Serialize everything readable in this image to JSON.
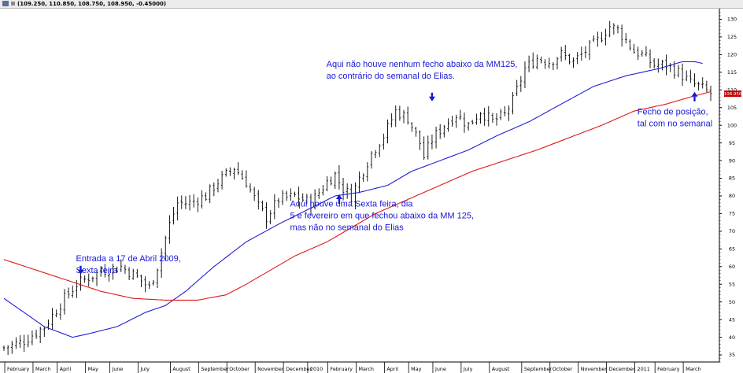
{
  "window": {
    "quote_readout": "(109.250, 110.850, 108.750, 108.950, -0.45000)"
  },
  "price_marker": {
    "value": "108.950",
    "color": "#c00000"
  },
  "colors": {
    "price_bars": "#000000",
    "ma_short": "#2020d8",
    "ma_long": "#e01818",
    "annotation_text": "#1818d8",
    "arrow": "#1818d8"
  },
  "annotations": [
    {
      "lines": [
        "Entrada a 17 de Abril 2009,",
        "Sexta feira"
      ],
      "x_index": 19,
      "y_value": 61.5,
      "arrow": "down",
      "arrow_x_index": 19,
      "arrow_y_value": 58
    },
    {
      "lines": [
        "Aqui houve uma Sexta feira, dia",
        "5 e fevereiro em que fechou abaixo da MM 125,",
        "mas não no semanal do Elias"
      ],
      "x_index": 72,
      "y_value": 77,
      "arrow": "up",
      "arrow_x_index": 83,
      "arrow_y_value": 78
    },
    {
      "lines": [
        "Aqui não houve nenhum fecho abaixo da MM125,",
        "ao contrário do semanal do Elias."
      ],
      "x_index": 81,
      "y_value": 116.5,
      "arrow": "down",
      "arrow_x_index": 106,
      "arrow_y_value": 107
    },
    {
      "lines": [
        "Fecho de posição,",
        "tal com no semanal"
      ],
      "x_index": 158,
      "y_value": 103,
      "arrow": "up",
      "arrow_x_index": 171,
      "arrow_y_value": 107
    }
  ],
  "chart_data": {
    "type": "line",
    "title": "",
    "xlabel": "",
    "ylabel": "",
    "ylim": [
      33,
      133
    ],
    "y_ticks": [
      35,
      40,
      45,
      50,
      55,
      60,
      65,
      70,
      75,
      80,
      85,
      90,
      95,
      100,
      105,
      110,
      115,
      120,
      125,
      130
    ],
    "grid": false,
    "legend": "none",
    "x_months": [
      {
        "label": "February",
        "index": 3
      },
      {
        "label": "March",
        "index": 10
      },
      {
        "label": "April",
        "index": 16
      },
      {
        "label": "May",
        "index": 23
      },
      {
        "label": "June",
        "index": 29
      },
      {
        "label": "July",
        "index": 36
      },
      {
        "label": "August",
        "index": 44
      },
      {
        "label": "September",
        "index": 51
      },
      {
        "label": "October",
        "index": 58
      },
      {
        "label": "November",
        "index": 65
      },
      {
        "label": "December",
        "index": 72
      },
      {
        "label": "2010",
        "index": 78
      },
      {
        "label": "February",
        "index": 83
      },
      {
        "label": "March",
        "index": 90
      },
      {
        "label": "April",
        "index": 97
      },
      {
        "label": "May",
        "index": 103
      },
      {
        "label": "June",
        "index": 109
      },
      {
        "label": "July",
        "index": 116
      },
      {
        "label": "August",
        "index": 123
      },
      {
        "label": "September",
        "index": 131
      },
      {
        "label": "October",
        "index": 138
      },
      {
        "label": "November",
        "index": 145
      },
      {
        "label": "December",
        "index": 152
      },
      {
        "label": "2011",
        "index": 159
      },
      {
        "label": "February",
        "index": 164
      },
      {
        "label": "March",
        "index": 171
      }
    ],
    "x_count": 176,
    "series": [
      {
        "kind": "price",
        "close_anchors": [
          [
            0,
            37
          ],
          [
            5,
            39
          ],
          [
            10,
            43
          ],
          [
            15,
            51
          ],
          [
            18,
            55
          ],
          [
            21,
            57
          ],
          [
            25,
            59
          ],
          [
            29,
            60
          ],
          [
            33,
            57
          ],
          [
            36,
            54
          ],
          [
            38,
            60
          ],
          [
            41,
            72
          ],
          [
            43,
            78
          ],
          [
            46,
            78
          ],
          [
            50,
            80
          ],
          [
            53,
            84
          ],
          [
            57,
            88
          ],
          [
            60,
            84
          ],
          [
            63,
            77
          ],
          [
            65,
            74
          ],
          [
            68,
            79
          ],
          [
            72,
            80
          ],
          [
            76,
            78
          ],
          [
            80,
            84
          ],
          [
            82,
            86
          ],
          [
            84,
            82
          ],
          [
            86,
            80
          ],
          [
            88,
            85
          ],
          [
            91,
            92
          ],
          [
            94,
            97
          ],
          [
            97,
            104
          ],
          [
            100,
            102
          ],
          [
            103,
            95
          ],
          [
            104,
            91
          ],
          [
            106,
            96
          ],
          [
            109,
            100
          ],
          [
            112,
            103
          ],
          [
            115,
            100
          ],
          [
            118,
            104
          ],
          [
            121,
            101
          ],
          [
            124,
            103
          ],
          [
            126,
            107
          ],
          [
            129,
            116
          ],
          [
            132,
            119
          ],
          [
            135,
            118
          ],
          [
            138,
            120
          ],
          [
            141,
            118
          ],
          [
            144,
            121
          ],
          [
            147,
            124
          ],
          [
            150,
            128
          ],
          [
            152,
            127
          ],
          [
            154,
            124
          ],
          [
            156,
            121
          ],
          [
            158,
            120
          ],
          [
            161,
            117
          ],
          [
            164,
            117
          ],
          [
            167,
            115
          ],
          [
            170,
            112
          ],
          [
            172,
            111
          ],
          [
            175,
            109
          ]
        ]
      },
      {
        "kind": "ma",
        "name": "",
        "color_key": "ma_short",
        "anchors": [
          [
            0,
            51
          ],
          [
            10,
            43
          ],
          [
            17,
            40
          ],
          [
            21,
            41
          ],
          [
            28,
            43
          ],
          [
            35,
            47
          ],
          [
            40,
            49
          ],
          [
            45,
            53
          ],
          [
            52,
            60
          ],
          [
            60,
            67
          ],
          [
            68,
            72
          ],
          [
            75,
            76
          ],
          [
            82,
            80
          ],
          [
            88,
            81
          ],
          [
            95,
            83
          ],
          [
            101,
            87
          ],
          [
            108,
            90
          ],
          [
            115,
            93
          ],
          [
            122,
            97
          ],
          [
            130,
            101
          ],
          [
            138,
            106
          ],
          [
            146,
            111
          ],
          [
            154,
            114
          ],
          [
            162,
            116
          ],
          [
            168,
            118
          ],
          [
            171,
            118
          ],
          [
            173,
            117.5
          ]
        ]
      },
      {
        "kind": "ma",
        "name": "",
        "color_key": "ma_long",
        "anchors": [
          [
            0,
            62
          ],
          [
            8,
            59
          ],
          [
            16,
            56
          ],
          [
            24,
            53
          ],
          [
            32,
            51
          ],
          [
            40,
            50.5
          ],
          [
            48,
            50.5
          ],
          [
            55,
            52
          ],
          [
            60,
            55
          ],
          [
            66,
            59
          ],
          [
            72,
            63
          ],
          [
            80,
            67
          ],
          [
            86,
            71
          ],
          [
            92,
            75
          ],
          [
            100,
            79
          ],
          [
            108,
            83
          ],
          [
            116,
            87
          ],
          [
            124,
            90
          ],
          [
            132,
            93
          ],
          [
            140,
            96.5
          ],
          [
            148,
            100
          ],
          [
            156,
            104
          ],
          [
            164,
            106
          ],
          [
            170,
            108
          ],
          [
            175,
            109.5
          ]
        ]
      }
    ]
  }
}
